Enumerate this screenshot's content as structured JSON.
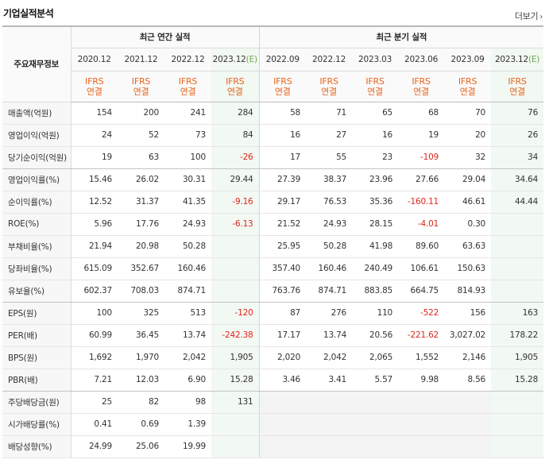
{
  "title": "기업실적분석",
  "more": {
    "label": "더보기",
    "icon": "chevron-right-icon"
  },
  "header": {
    "corner": "주요재무정보",
    "annual_group": "최근 연간 실적",
    "quarter_group": "최근 분기 실적",
    "periods": [
      {
        "label": "2020.12",
        "est": ""
      },
      {
        "label": "2021.12",
        "est": ""
      },
      {
        "label": "2022.12",
        "est": ""
      },
      {
        "label": "2023.12",
        "est": "(E)"
      },
      {
        "label": "2022.09",
        "est": ""
      },
      {
        "label": "2022.12",
        "est": ""
      },
      {
        "label": "2023.03",
        "est": ""
      },
      {
        "label": "2023.06",
        "est": ""
      },
      {
        "label": "2023.09",
        "est": ""
      },
      {
        "label": "2023.12",
        "est": "(E)"
      }
    ],
    "ifrs_line1": "IFRS",
    "ifrs_line2": "연결"
  },
  "rows": [
    {
      "label": "매출액(억원)",
      "values": [
        "154",
        "200",
        "241",
        "284",
        "58",
        "71",
        "65",
        "68",
        "70",
        "76"
      ]
    },
    {
      "label": "영업이익(억원)",
      "values": [
        "24",
        "52",
        "73",
        "84",
        "16",
        "27",
        "16",
        "19",
        "20",
        "26"
      ]
    },
    {
      "label": "당기순이익(억원)",
      "values": [
        "19",
        "63",
        "100",
        "-26",
        "17",
        "55",
        "23",
        "-109",
        "32",
        "34"
      ]
    },
    {
      "label": "영업이익률(%)",
      "values": [
        "15.46",
        "26.02",
        "30.31",
        "29.44",
        "27.39",
        "38.37",
        "23.96",
        "27.66",
        "29.04",
        "34.64"
      ]
    },
    {
      "label": "순이익률(%)",
      "values": [
        "12.52",
        "31.37",
        "41.35",
        "-9.16",
        "29.17",
        "76.53",
        "35.36",
        "-160.11",
        "46.61",
        "44.44"
      ]
    },
    {
      "label": "ROE(%)",
      "values": [
        "5.96",
        "17.76",
        "24.93",
        "-6.13",
        "21.52",
        "24.93",
        "28.15",
        "-4.01",
        "0.30",
        ""
      ]
    },
    {
      "label": "부채비율(%)",
      "values": [
        "21.94",
        "20.98",
        "50.28",
        "",
        "25.95",
        "50.28",
        "41.98",
        "89.60",
        "63.63",
        ""
      ]
    },
    {
      "label": "당좌비율(%)",
      "values": [
        "615.09",
        "352.67",
        "160.46",
        "",
        "357.40",
        "160.46",
        "240.49",
        "106.61",
        "150.63",
        ""
      ]
    },
    {
      "label": "유보율(%)",
      "values": [
        "602.37",
        "708.03",
        "874.71",
        "",
        "763.76",
        "874.71",
        "883.85",
        "664.75",
        "814.93",
        ""
      ]
    },
    {
      "label": "EPS(원)",
      "values": [
        "100",
        "325",
        "513",
        "-120",
        "87",
        "276",
        "110",
        "-522",
        "156",
        "163"
      ]
    },
    {
      "label": "PER(배)",
      "values": [
        "60.99",
        "36.45",
        "13.74",
        "-242.38",
        "17.17",
        "13.74",
        "20.56",
        "-221.62",
        "3,027.02",
        "178.22"
      ]
    },
    {
      "label": "BPS(원)",
      "values": [
        "1,692",
        "1,970",
        "2,042",
        "1,905",
        "2,020",
        "2,042",
        "2,065",
        "1,552",
        "2,146",
        "1,905"
      ]
    },
    {
      "label": "PBR(배)",
      "values": [
        "7.21",
        "12.03",
        "6.90",
        "15.28",
        "3.46",
        "3.41",
        "5.57",
        "9.98",
        "8.56",
        "15.28"
      ]
    },
    {
      "label": "주당배당금(원)",
      "values": [
        "25",
        "82",
        "98",
        "131",
        "",
        "",
        "",
        "",
        "",
        ""
      ]
    },
    {
      "label": "시가배당률(%)",
      "values": [
        "0.41",
        "0.69",
        "1.39",
        "",
        "",
        "",
        "",
        "",
        "",
        ""
      ]
    },
    {
      "label": "배당성향(%)",
      "values": [
        "24.99",
        "25.06",
        "19.99",
        "",
        "",
        "",
        "",
        "",
        "",
        ""
      ]
    }
  ],
  "colors": {
    "ifrs": "#e8641b",
    "negative": "#e3231c",
    "estimate_bg": "#f2f8f2",
    "estimate_mark": "#6aa84f"
  }
}
